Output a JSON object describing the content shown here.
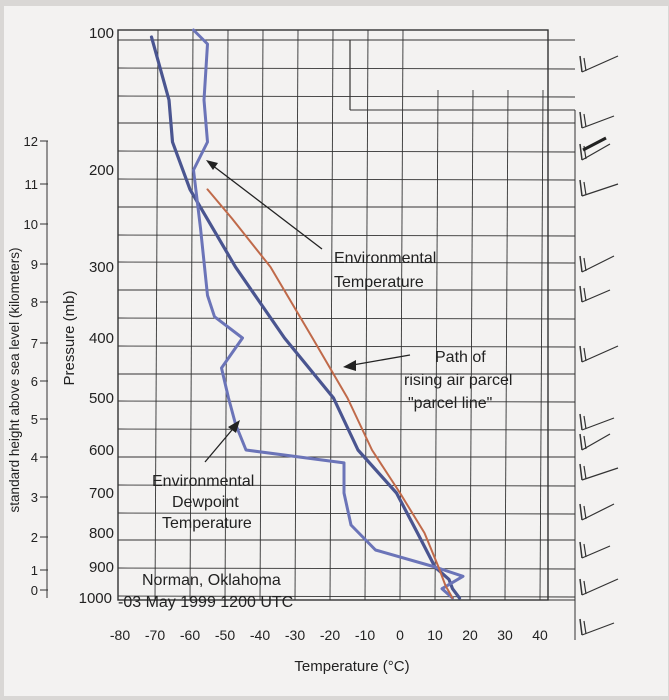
{
  "chart_data": {
    "type": "line",
    "title": "Norman, Oklahoma 03 May 1999 1200 UTC",
    "caption_line1": "Norman, Oklahoma",
    "caption_line2": "-03 May 1999 1200 UTC",
    "xlabel": "Temperature (°C)",
    "ylabel_pressure": "Pressure (mb)",
    "ylabel_height": "standard height above sea level (kilometers)",
    "x_ticks": [
      "-80",
      "-70",
      "-60",
      "-50",
      "-40",
      "-30",
      "-20",
      "-10",
      "0",
      "10",
      "20",
      "30",
      "40"
    ],
    "xlim": [
      -80,
      40
    ],
    "pressure_ticks": [
      "100",
      "200",
      "300",
      "400",
      "500",
      "600",
      "700",
      "800",
      "900",
      "1000"
    ],
    "height_ticks": [
      "0",
      "1",
      "2",
      "3",
      "4",
      "5",
      "6",
      "7",
      "8",
      "9",
      "10",
      "11",
      "12"
    ],
    "series": [
      {
        "name": "Environmental Temperature",
        "color": "#4a5590",
        "points": [
          [
            17,
            1000
          ],
          [
            15,
            970
          ],
          [
            14,
            940
          ],
          [
            10,
            900
          ],
          [
            5,
            800
          ],
          [
            -1,
            700
          ],
          [
            -12,
            600
          ],
          [
            -19,
            500
          ],
          [
            -33,
            400
          ],
          [
            -47,
            300
          ],
          [
            -60,
            220
          ],
          [
            -65,
            180
          ],
          [
            -66,
            150
          ],
          [
            -71,
            105
          ]
        ]
      },
      {
        "name": "Environmental Dewpoint Temperature",
        "color": "#6b74b8",
        "points": [
          [
            15,
            1000
          ],
          [
            12,
            970
          ],
          [
            18,
            930
          ],
          [
            10,
            900
          ],
          [
            -7,
            850
          ],
          [
            -14,
            780
          ],
          [
            -16,
            700
          ],
          [
            -16,
            630
          ],
          [
            -44,
            600
          ],
          [
            -47,
            550
          ],
          [
            -49,
            500
          ],
          [
            -51,
            450
          ],
          [
            -45,
            400
          ],
          [
            -53,
            370
          ],
          [
            -55,
            340
          ],
          [
            -57,
            260
          ],
          [
            -59,
            200
          ],
          [
            -55,
            180
          ],
          [
            -56,
            150
          ],
          [
            -55,
            110
          ],
          [
            -59,
            100
          ]
        ]
      },
      {
        "name": "Path of rising air parcel",
        "color": "#c06a4a",
        "points": [
          [
            15,
            1000
          ],
          [
            13,
            960
          ],
          [
            11,
            900
          ],
          [
            7,
            800
          ],
          [
            0,
            700
          ],
          [
            -8,
            600
          ],
          [
            -15,
            500
          ],
          [
            -25,
            400
          ],
          [
            -37,
            300
          ],
          [
            -48,
            250
          ],
          [
            -55,
            220
          ]
        ]
      }
    ],
    "annotations": {
      "env_temp_line1": "Environmental",
      "env_temp_line2": "Temperature",
      "parcel_line1": "Path of",
      "parcel_line2": "rising air parcel",
      "parcel_line3": "\"parcel line\"",
      "dew_line1": "Environmental",
      "dew_line2": "Dewpoint",
      "dew_line3": "Temperature"
    },
    "grid": true
  },
  "colors": {
    "background": "#d9d7d5",
    "paper": "#f3f2f1",
    "grid": "#333333"
  }
}
